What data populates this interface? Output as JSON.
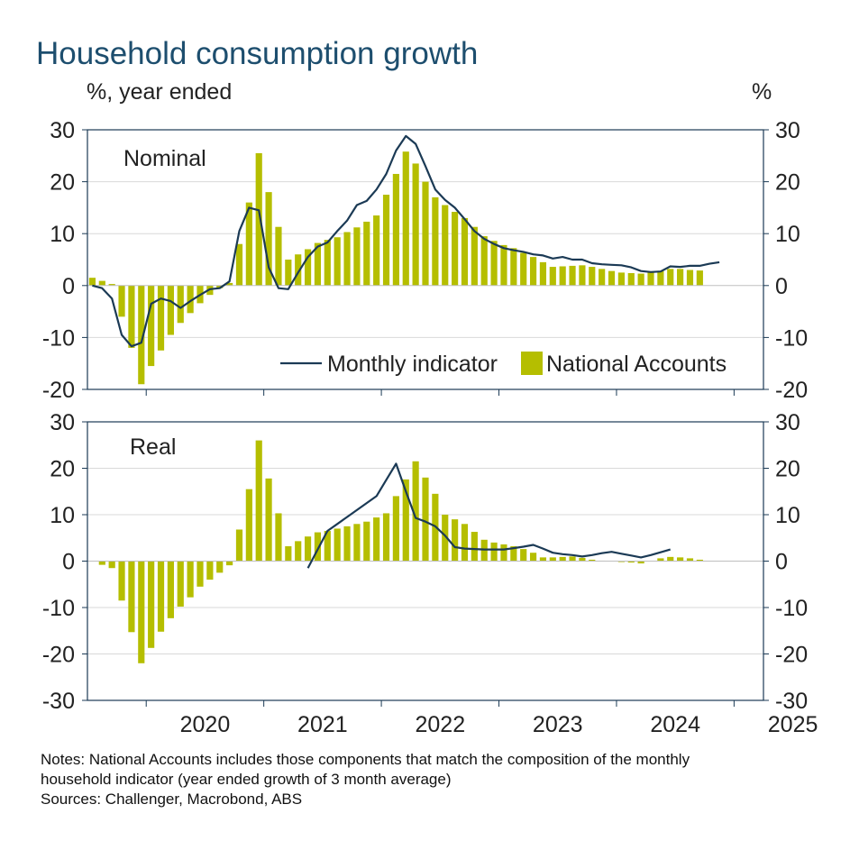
{
  "title": "Household consumption growth",
  "y_label_left": "%, year ended",
  "y_label_right": "%",
  "notes": [
    "Notes: National Accounts includes those components that match the composition of the monthly",
    "household indicator (year ended growth of 3 month average)",
    "Sources: Challenger, Macrobond, ABS"
  ],
  "colors": {
    "bar": "#b5be00",
    "line": "#1b3a55",
    "axis": "#1b3a55",
    "grid": "#d9d9d9",
    "title": "#1d4e6e"
  },
  "chart_data": [
    {
      "type": "bar+line",
      "panel_label": "Nominal",
      "ylim": [
        -20,
        30
      ],
      "yticks": [
        -20,
        -10,
        0,
        10,
        20,
        30
      ],
      "x_tick_labels": [
        "2020",
        "2021",
        "2022",
        "2023",
        "2024",
        "2025"
      ],
      "legend": [
        "Monthly indicator",
        "National Accounts"
      ],
      "legend_position": "bottom-right",
      "bar_start": "2019-07",
      "bar_values": [
        1.5,
        0.9,
        0.3,
        -6,
        -12,
        -19,
        -15.5,
        -12.5,
        -9.5,
        -7.2,
        -5.3,
        -3.4,
        -1.8,
        -0.5,
        0.5,
        8,
        16,
        25.5,
        18,
        11.3,
        5,
        6,
        7,
        8.2,
        8.8,
        9.3,
        10.3,
        11.2,
        12.3,
        13.5,
        17.5,
        21.5,
        25.8,
        23.5,
        20,
        17,
        15.5,
        14.2,
        13,
        11.3,
        9.5,
        8.6,
        7.8,
        7.2,
        6.3,
        5.5,
        4.5,
        3.6,
        3.7,
        3.8,
        3.9,
        3.6,
        3.2,
        2.8,
        2.5,
        2.4,
        2.3,
        2.6,
        2.8,
        3.2,
        3.2,
        3,
        2.9
      ],
      "line_start": "2019-07",
      "line_values": [
        0,
        -0.5,
        -2.5,
        -9.5,
        -11.7,
        -11,
        -3.5,
        -2.5,
        -3,
        -4.3,
        -3,
        -1.8,
        -0.7,
        -0.5,
        0.8,
        10.5,
        15,
        14.5,
        3.5,
        -0.5,
        -0.7,
        2.5,
        5.5,
        7.5,
        8.3,
        10.5,
        12.5,
        15.5,
        16.3,
        18.5,
        21.5,
        26,
        28.8,
        27.3,
        23,
        18.5,
        16.5,
        15,
        12.8,
        10.5,
        9,
        8,
        7.2,
        6.8,
        6.5,
        6,
        5.8,
        5.2,
        5.5,
        5,
        5,
        4.3,
        4.1,
        4,
        3.9,
        3.5,
        2.8,
        2.6,
        2.7,
        3.7,
        3.6,
        3.8,
        3.8,
        4.2,
        4.5
      ]
    },
    {
      "type": "bar+line",
      "panel_label": "Real",
      "ylim": [
        -30,
        30
      ],
      "yticks": [
        -30,
        -20,
        -10,
        0,
        10,
        20,
        30
      ],
      "x_tick_labels": [
        "2020",
        "2021",
        "2022",
        "2023",
        "2024",
        "2025"
      ],
      "bar_start": "2019-07",
      "bar_values": [
        0,
        -0.8,
        -1.5,
        -8.5,
        -15.3,
        -22,
        -18.7,
        -15.2,
        -12.3,
        -9.8,
        -7.8,
        -5.5,
        -4,
        -2.5,
        -0.9,
        6.8,
        15.5,
        26,
        17.8,
        10.3,
        3.2,
        4.3,
        5.3,
        6.2,
        6.5,
        7,
        7.5,
        8,
        8.5,
        9.4,
        10.3,
        14,
        17.6,
        21.5,
        18,
        14.5,
        10,
        9,
        8,
        6.3,
        4.6,
        4,
        3.6,
        3.2,
        2.6,
        1.8,
        0.8,
        0.8,
        0.9,
        1,
        0.7,
        0.3,
        0.1,
        0,
        -0.2,
        -0.3,
        -0.5,
        0,
        0.6,
        0.9,
        0.8,
        0.6,
        0.3
      ],
      "line_start": "2021-05",
      "line_values": [
        -1.5,
        2.5,
        6.5,
        8,
        9.5,
        11,
        12.5,
        14,
        17.5,
        21,
        15,
        9.3,
        8.5,
        7.5,
        5.5,
        3,
        2.7,
        2.6,
        2.5,
        2.5,
        2.5,
        2.8,
        3.1,
        3.5,
        2.7,
        1.8,
        1.5,
        1.3,
        1.0,
        1.3,
        1.7,
        2.0,
        1.6,
        1.2,
        0.8,
        1.3,
        1.9,
        2.5
      ]
    }
  ]
}
